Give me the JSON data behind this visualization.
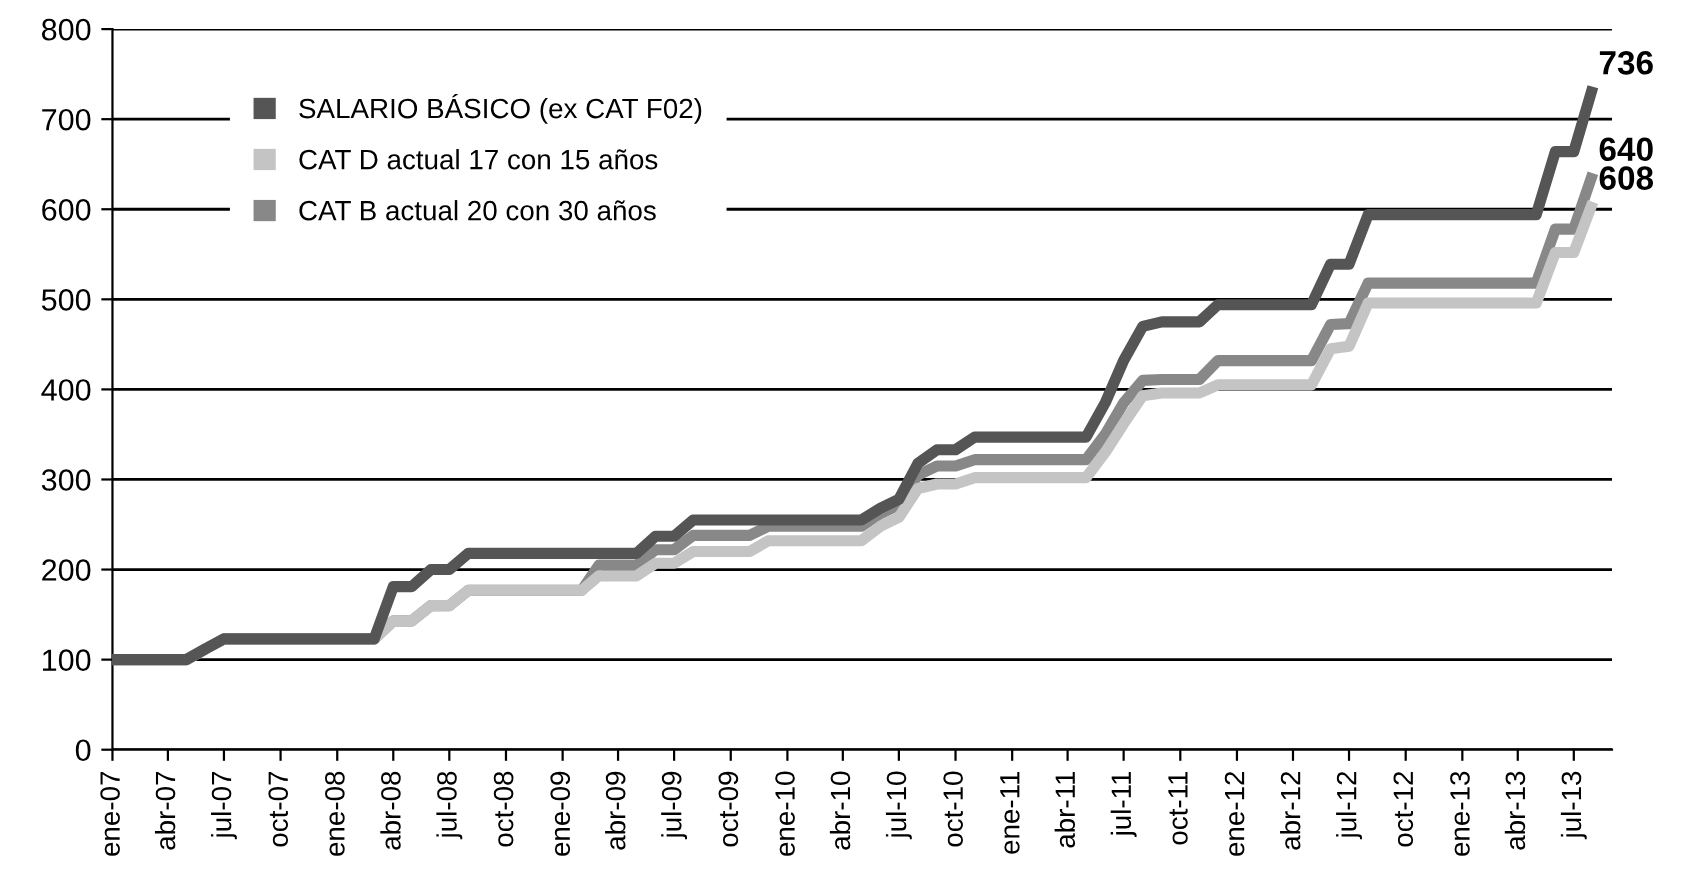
{
  "chart_data": {
    "type": "line",
    "series": [
      {
        "name": "SALARIO BÁSICO (ex CAT F02)",
        "color": "#555555",
        "x": [
          "2007-01",
          "2007-05",
          "2007-06",
          "2007-07",
          "2008-03",
          "2008-04",
          "2008-05",
          "2008-06",
          "2008-07",
          "2008-08",
          "2009-05",
          "2009-06",
          "2009-07",
          "2009-08",
          "2010-05",
          "2010-06",
          "2010-07",
          "2010-08",
          "2010-09",
          "2010-10",
          "2010-11",
          "2011-05",
          "2011-06",
          "2011-07",
          "2011-08",
          "2011-09",
          "2011-11",
          "2011-12",
          "2012-05",
          "2012-06",
          "2012-07",
          "2012-08",
          "2013-05",
          "2013-06",
          "2013-07",
          "2013-08"
        ],
        "values": [
          100,
          100,
          112,
          123,
          123,
          181,
          181,
          200,
          200,
          218,
          218,
          237,
          237,
          255,
          255,
          268,
          278,
          318,
          333,
          333,
          347,
          347,
          385,
          432,
          470,
          475,
          475,
          494,
          494,
          539,
          539,
          594,
          594,
          664,
          664,
          736
        ],
        "value_labels": [
          null,
          null,
          null,
          null,
          null,
          null,
          null,
          null,
          null,
          null,
          null,
          null,
          null,
          null,
          null,
          null,
          null,
          null,
          null,
          null,
          null,
          null,
          null,
          null,
          null,
          null,
          null,
          null,
          null,
          null,
          null,
          null,
          null,
          null,
          null,
          "736"
        ]
      },
      {
        "name": "CAT D actual 17 con 15 años",
        "color": "#c4c4c4",
        "x": [
          "2007-01",
          "2007-05",
          "2007-06",
          "2007-07",
          "2008-03",
          "2008-04",
          "2008-05",
          "2008-06",
          "2008-07",
          "2008-08",
          "2009-02",
          "2009-03",
          "2009-05",
          "2009-06",
          "2009-07",
          "2009-08",
          "2009-11",
          "2009-12",
          "2010-05",
          "2010-06",
          "2010-07",
          "2010-08",
          "2010-09",
          "2010-10",
          "2010-11",
          "2011-05",
          "2011-06",
          "2011-07",
          "2011-08",
          "2011-09",
          "2011-11",
          "2011-12",
          "2012-05",
          "2012-06",
          "2012-07",
          "2012-08",
          "2013-05",
          "2013-06",
          "2013-07",
          "2013-08"
        ],
        "values": [
          100,
          100,
          112,
          123,
          123,
          143,
          143,
          160,
          160,
          177,
          177,
          193,
          193,
          207,
          207,
          220,
          220,
          232,
          232,
          248,
          258,
          290,
          295,
          295,
          302,
          302,
          330,
          362,
          393,
          396,
          396,
          405,
          405,
          445,
          448,
          496,
          496,
          552,
          552,
          608
        ],
        "value_labels": [
          null,
          null,
          null,
          null,
          null,
          null,
          null,
          null,
          null,
          null,
          null,
          null,
          null,
          null,
          null,
          null,
          null,
          null,
          null,
          null,
          null,
          null,
          null,
          null,
          null,
          null,
          null,
          null,
          null,
          null,
          null,
          null,
          null,
          null,
          null,
          null,
          null,
          null,
          null,
          "608"
        ]
      },
      {
        "name": "CAT B actual 20 con 30 años",
        "color": "#888888",
        "x": [
          "2007-01",
          "2007-05",
          "2007-06",
          "2007-07",
          "2008-03",
          "2008-04",
          "2008-05",
          "2008-06",
          "2008-07",
          "2008-08",
          "2009-02",
          "2009-03",
          "2009-05",
          "2009-06",
          "2009-07",
          "2009-08",
          "2009-11",
          "2009-12",
          "2010-05",
          "2010-06",
          "2010-07",
          "2010-08",
          "2010-09",
          "2010-10",
          "2010-11",
          "2011-05",
          "2011-06",
          "2011-07",
          "2011-08",
          "2011-09",
          "2011-11",
          "2011-12",
          "2012-05",
          "2012-06",
          "2012-07",
          "2012-08",
          "2013-05",
          "2013-06",
          "2013-07",
          "2013-08"
        ],
        "values": [
          100,
          100,
          112,
          123,
          123,
          143,
          143,
          160,
          160,
          177,
          177,
          205,
          205,
          222,
          222,
          238,
          238,
          248,
          248,
          262,
          272,
          305,
          315,
          315,
          322,
          322,
          350,
          385,
          410,
          411,
          411,
          432,
          432,
          472,
          473,
          518,
          518,
          578,
          578,
          640
        ],
        "value_labels": [
          null,
          null,
          null,
          null,
          null,
          null,
          null,
          null,
          null,
          null,
          null,
          null,
          null,
          null,
          null,
          null,
          null,
          null,
          null,
          null,
          null,
          null,
          null,
          null,
          null,
          null,
          null,
          null,
          null,
          null,
          null,
          null,
          null,
          null,
          null,
          null,
          null,
          null,
          null,
          "640"
        ]
      }
    ],
    "xlim": [
      "2007-01",
      "2013-09"
    ],
    "xticks": [
      {
        "value": "2007-01",
        "label": "ene-07"
      },
      {
        "value": "2007-04",
        "label": "abr-07"
      },
      {
        "value": "2007-07",
        "label": "jul-07"
      },
      {
        "value": "2007-10",
        "label": "oct-07"
      },
      {
        "value": "2008-01",
        "label": "ene-08"
      },
      {
        "value": "2008-04",
        "label": "abr-08"
      },
      {
        "value": "2008-07",
        "label": "jul-08"
      },
      {
        "value": "2008-10",
        "label": "oct-08"
      },
      {
        "value": "2009-01",
        "label": "ene-09"
      },
      {
        "value": "2009-04",
        "label": "abr-09"
      },
      {
        "value": "2009-07",
        "label": "jul-09"
      },
      {
        "value": "2009-10",
        "label": "oct-09"
      },
      {
        "value": "2010-01",
        "label": "ene-10"
      },
      {
        "value": "2010-04",
        "label": "abr-10"
      },
      {
        "value": "2010-07",
        "label": "jul-10"
      },
      {
        "value": "2010-10",
        "label": "oct-10"
      },
      {
        "value": "2011-01",
        "label": "ene-11"
      },
      {
        "value": "2011-04",
        "label": "abr-11"
      },
      {
        "value": "2011-07",
        "label": "jul-11"
      },
      {
        "value": "2011-10",
        "label": "oct-11"
      },
      {
        "value": "2012-01",
        "label": "ene-12"
      },
      {
        "value": "2012-04",
        "label": "abr-12"
      },
      {
        "value": "2012-07",
        "label": "jul-12"
      },
      {
        "value": "2012-10",
        "label": "oct-12"
      },
      {
        "value": "2013-01",
        "label": "ene-13"
      },
      {
        "value": "2013-04",
        "label": "abr-13"
      },
      {
        "value": "2013-07",
        "label": "jul-13"
      }
    ],
    "ylim": [
      0,
      800
    ],
    "yticks": [
      0,
      100,
      200,
      300,
      400,
      500,
      600,
      700,
      800
    ],
    "grid": "y",
    "legend": "top left",
    "line_style": "solid",
    "marker": "none"
  }
}
